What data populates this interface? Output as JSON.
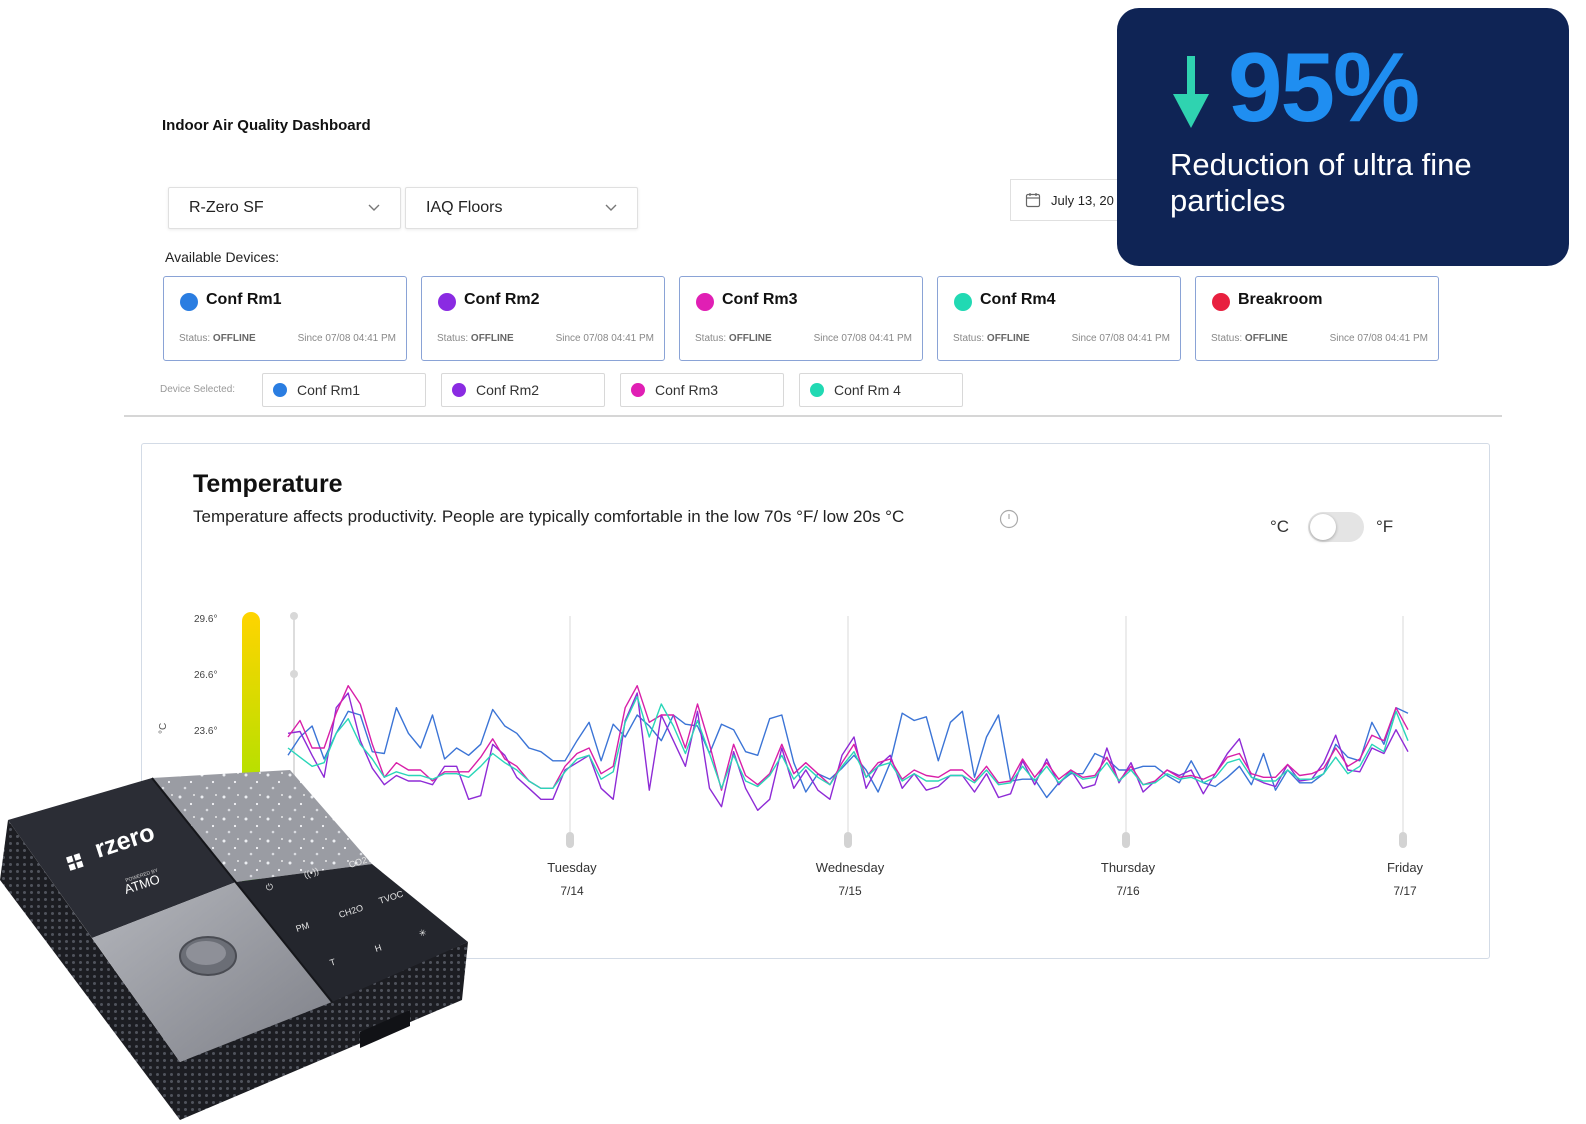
{
  "dashboard": {
    "title": "Indoor Air Quality Dashboard",
    "location_select": "R-Zero SF",
    "floor_select": "IAQ Floors",
    "date_range": "July 13, 20",
    "available_label": "Available Devices:",
    "selected_label": "Device Selected:"
  },
  "devices": [
    {
      "name": "Conf Rm1",
      "status_label": "Status:",
      "status": "OFFLINE",
      "since": "Since 07/08 04:41 PM",
      "color": "#2a7de1"
    },
    {
      "name": "Conf Rm2",
      "status_label": "Status:",
      "status": "OFFLINE",
      "since": "Since 07/08 04:41 PM",
      "color": "#8a2be2"
    },
    {
      "name": "Conf Rm3",
      "status_label": "Status:",
      "status": "OFFLINE",
      "since": "Since 07/08 04:41 PM",
      "color": "#e01fb4"
    },
    {
      "name": "Conf Rm4",
      "status_label": "Status:",
      "status": "OFFLINE",
      "since": "Since 07/08 04:41 PM",
      "color": "#21d9b3"
    },
    {
      "name": "Breakroom",
      "status_label": "Status:",
      "status": "OFFLINE",
      "since": "Since 07/08 04:41 PM",
      "color": "#e8203f"
    }
  ],
  "selected_devices": [
    {
      "name": "Conf Rm1",
      "color": "#2a7de1"
    },
    {
      "name": "Conf Rm2",
      "color": "#8a2be2"
    },
    {
      "name": "Conf Rm3",
      "color": "#e01fb4"
    },
    {
      "name": "Conf Rm 4",
      "color": "#21d9b3"
    }
  ],
  "temperature_panel": {
    "title": "Temperature",
    "description": "Temperature affects productivity. People are typically comfortable in the low 70s °F/ low 20s °C",
    "unit_celsius": "°C",
    "unit_fahrenheit": "°F",
    "toggle_fahrenheit_on": false
  },
  "chart_data": {
    "type": "line",
    "title": "Temperature",
    "ylabel": "°C",
    "y_ticks": [
      "29.6°",
      "26.6°",
      "23.6°"
    ],
    "ylim": [
      18,
      30
    ],
    "x_ticks": [
      {
        "day": "Tuesday",
        "date": "7/14"
      },
      {
        "day": "Wednesday",
        "date": "7/15"
      },
      {
        "day": "Thursday",
        "date": "7/16"
      },
      {
        "day": "Friday",
        "date": "7/17"
      }
    ],
    "grid": false,
    "series": [
      {
        "name": "Conf Rm1",
        "color": "#3b74d6",
        "values": [
          22.4,
          23.4,
          24.0,
          22.2,
          23.6,
          24.8,
          24.6,
          22.6,
          22.5,
          25.0,
          23.6,
          22.8,
          24.6,
          22.2,
          22.8,
          22.4,
          23.0,
          24.9,
          24.0,
          23.6,
          22.8,
          22.6,
          22.1,
          22.1,
          23.2,
          24.2,
          22.1,
          24.1,
          23.4,
          24.6,
          24.0,
          23.2,
          24.6,
          24.1,
          24.0,
          22.5,
          24.1,
          23.8,
          22.6,
          22.4,
          24.4,
          24.6,
          22.0,
          20.4,
          21.4,
          21.1,
          21.7,
          22.4,
          21.6,
          20.4,
          22.0,
          24.7,
          24.3,
          24.5,
          22.1,
          24.2,
          24.8,
          21.2,
          23.4,
          24.6,
          21.0,
          21.1,
          21.1,
          20.1,
          20.9,
          21.4,
          21.4,
          22.5,
          22.2,
          21.6,
          21.6,
          21.8,
          21.8,
          21.3,
          20.9,
          22.1,
          20.9,
          20.7,
          21.2,
          21.8,
          20.8,
          22.5,
          20.5,
          21.6,
          20.9,
          20.9,
          21.4,
          23.0,
          22.3,
          22.1,
          24.2,
          23.0,
          25.0,
          24.7
        ]
      },
      {
        "name": "Conf Rm2",
        "color": "#8e2bd6",
        "values": [
          23.6,
          23.7,
          22.4,
          21.2,
          25.0,
          25.8,
          23.2,
          21.7,
          20.8,
          21.3,
          21.0,
          21.0,
          20.8,
          21.8,
          21.8,
          20.0,
          20.2,
          23.0,
          22.4,
          21.2,
          20.6,
          20.0,
          20.0,
          21.6,
          22.0,
          22.4,
          20.6,
          20.0,
          24.3,
          25.8,
          20.5,
          24.6,
          23.2,
          21.8,
          24.8,
          20.6,
          19.6,
          22.6,
          20.6,
          19.4,
          20.0,
          22.8,
          20.6,
          21.6,
          20.5,
          20.0,
          22.4,
          23.4,
          20.6,
          21.8,
          22.4,
          20.6,
          21.4,
          20.5,
          20.7,
          21.3,
          21.3,
          20.4,
          21.4,
          20.1,
          20.3,
          22.1,
          20.8,
          22.2,
          20.8,
          21.6,
          20.6,
          20.8,
          22.8,
          20.9,
          22.0,
          20.4,
          21.0,
          21.6,
          21.3,
          21.6,
          20.3,
          21.4,
          22.5,
          23.3,
          21.2,
          20.9,
          20.7,
          21.9,
          21.0,
          21.1,
          22.0,
          23.5,
          21.6,
          21.5,
          22.8,
          22.5,
          23.8,
          22.6
        ]
      },
      {
        "name": "Conf Rm3",
        "color": "#d81fa8",
        "values": [
          23.4,
          24.3,
          22.8,
          22.8,
          24.7,
          26.2,
          25.2,
          23.0,
          21.2,
          22.0,
          21.6,
          21.6,
          21.0,
          21.5,
          21.5,
          21.5,
          22.3,
          23.3,
          22.2,
          21.8,
          21.0,
          20.6,
          20.6,
          21.8,
          22.5,
          22.8,
          21.4,
          21.8,
          25.0,
          26.2,
          24.2,
          24.6,
          24.6,
          22.8,
          25.2,
          23.0,
          20.5,
          23.0,
          21.3,
          20.8,
          21.4,
          23.0,
          21.4,
          22.0,
          21.4,
          20.8,
          22.0,
          23.0,
          21.2,
          22.0,
          22.2,
          21.1,
          21.6,
          21.3,
          21.2,
          21.6,
          21.6,
          21.0,
          21.8,
          20.9,
          21.0,
          22.2,
          21.2,
          22.0,
          21.1,
          21.6,
          21.2,
          21.3,
          22.3,
          21.0,
          21.8,
          20.8,
          21.0,
          21.6,
          21.2,
          21.3,
          21.1,
          21.4,
          22.3,
          22.5,
          21.4,
          21.2,
          21.2,
          21.9,
          21.3,
          21.4,
          21.7,
          22.8,
          21.8,
          22.2,
          23.5,
          23.2,
          25.0,
          23.8
        ]
      },
      {
        "name": "Conf Rm4",
        "color": "#2ad6b8",
        "values": [
          22.8,
          22.3,
          21.8,
          22.0,
          23.6,
          24.4,
          23.0,
          22.2,
          21.2,
          21.5,
          21.3,
          21.3,
          21.1,
          21.4,
          21.4,
          21.2,
          21.8,
          22.5,
          22.0,
          21.6,
          21.0,
          20.6,
          20.6,
          21.5,
          22.2,
          22.4,
          21.1,
          21.5,
          24.2,
          25.6,
          23.4,
          25.2,
          24.0,
          22.5,
          24.3,
          22.5,
          20.6,
          22.4,
          21.0,
          20.7,
          21.3,
          22.4,
          21.1,
          21.8,
          21.2,
          20.8,
          21.8,
          22.6,
          21.2,
          21.8,
          22.0,
          21.0,
          21.4,
          21.0,
          21.0,
          21.3,
          21.3,
          20.9,
          21.6,
          20.8,
          20.9,
          21.8,
          21.0,
          21.8,
          20.9,
          21.5,
          21.1,
          21.2,
          22.0,
          21.0,
          21.6,
          20.8,
          20.9,
          21.4,
          21.1,
          21.2,
          20.9,
          21.2,
          22.0,
          22.2,
          21.2,
          21.0,
          21.0,
          21.6,
          21.1,
          21.1,
          21.4,
          22.3,
          21.4,
          21.8,
          23.0,
          22.6,
          24.8,
          23.2
        ]
      }
    ]
  },
  "promo": {
    "value": "95%",
    "label": "Reduction of ultra fine particles",
    "value_color": "#1f8ef1",
    "arrow_color": "#2fd3b0",
    "background": "#0f2455"
  },
  "product": {
    "brand": "rzero",
    "sub_brand_small": "POWERED BY",
    "sub_brand": "ATMO",
    "keys": [
      "CO2",
      "TVOC",
      "CH2O",
      "PM",
      "T",
      "H"
    ]
  }
}
